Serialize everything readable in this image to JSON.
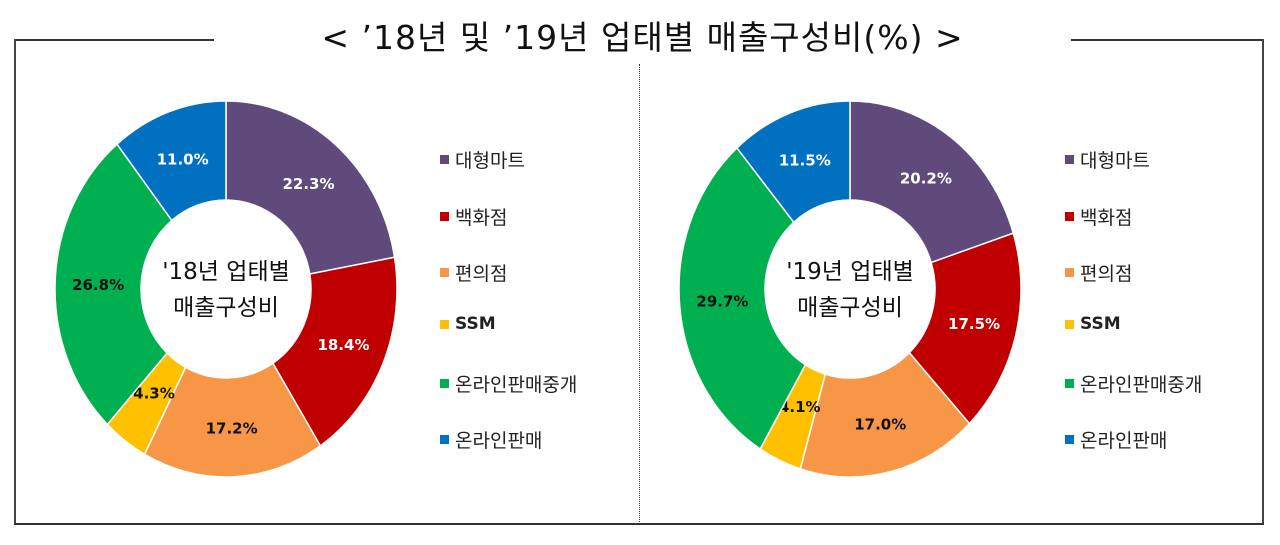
{
  "title": "< ’18년 및 ’19년 업태별 매출구성비(%) >",
  "colors": {
    "대형마트": "#604A7B",
    "백화점": "#C00000",
    "편의점": "#F79646",
    "SSM": "#FFC000",
    "온라인판매중개": "#00B050",
    "온라인판매": "#0070C0"
  },
  "legend": [
    {
      "label": "대형마트",
      "color": "#604A7B"
    },
    {
      "label": "백화점",
      "color": "#C00000"
    },
    {
      "label": "편의점",
      "color": "#F79646"
    },
    {
      "label": "SSM",
      "color": "#FFC000"
    },
    {
      "label": "온라인판매중개",
      "color": "#00B050"
    },
    {
      "label": "온라인판매",
      "color": "#0070C0"
    }
  ],
  "charts": [
    {
      "center_title_line1": "'18년 업태별",
      "center_title_line2": "매출구성비"
    },
    {
      "center_title_line1": "'19년 업태별",
      "center_title_line2": "매출구성비"
    }
  ],
  "chart_data": [
    {
      "type": "pie",
      "variant": "donut",
      "title": "'18년 업태별 매출구성비",
      "categories": [
        "대형마트",
        "백화점",
        "편의점",
        "SSM",
        "온라인판매중개",
        "온라인판매"
      ],
      "values": [
        22.3,
        18.4,
        17.2,
        4.3,
        26.8,
        11.0
      ],
      "labels": [
        "22.3%",
        "18.4%",
        "17.2%",
        "4.3%",
        "26.8%",
        "11.0%"
      ],
      "colors": [
        "#604A7B",
        "#C00000",
        "#F79646",
        "#FFC000",
        "#00B050",
        "#0070C0"
      ],
      "unit": "%",
      "legend_position": "right",
      "start_angle": "12 o'clock, clockwise"
    },
    {
      "type": "pie",
      "variant": "donut",
      "title": "'19년 업태별 매출구성비",
      "categories": [
        "대형마트",
        "백화점",
        "편의점",
        "SSM",
        "온라인판매중개",
        "온라인판매"
      ],
      "values": [
        20.2,
        17.5,
        17.0,
        4.1,
        29.7,
        11.5
      ],
      "labels": [
        "20.2%",
        "17.5%",
        "17.0%",
        "4.1%",
        "29.7%",
        "11.5%"
      ],
      "colors": [
        "#604A7B",
        "#C00000",
        "#F79646",
        "#FFC000",
        "#00B050",
        "#0070C0"
      ],
      "unit": "%",
      "legend_position": "right",
      "start_angle": "12 o'clock, clockwise"
    }
  ]
}
